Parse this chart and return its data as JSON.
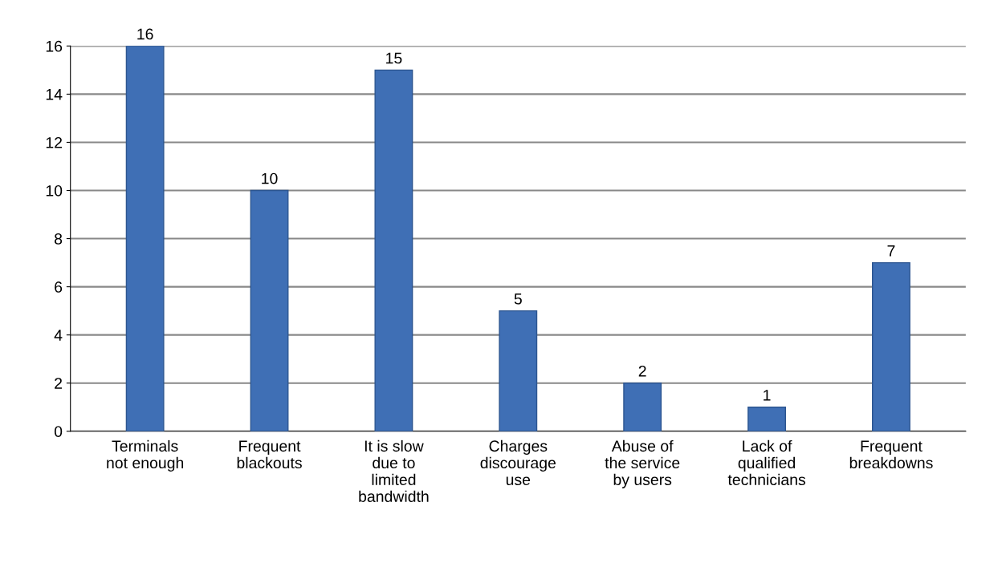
{
  "chart_data": {
    "type": "bar",
    "categories": [
      "Terminals\nnot enough",
      "Frequent\nblackouts",
      "It is slow\ndue to\nlimited\nbandwidth",
      "Charges\ndiscourage\nuse",
      "Abuse of\nthe service\nby users",
      "Lack of\nqualified\ntechnicians",
      "Frequent\nbreakdowns"
    ],
    "values": [
      16,
      10,
      15,
      5,
      2,
      1,
      7
    ],
    "color": "#3f6fb5",
    "ylim": [
      0,
      16
    ],
    "yticks": [
      0,
      2,
      4,
      6,
      8,
      10,
      12,
      14,
      16
    ],
    "grid": "y",
    "data_labels": true
  }
}
